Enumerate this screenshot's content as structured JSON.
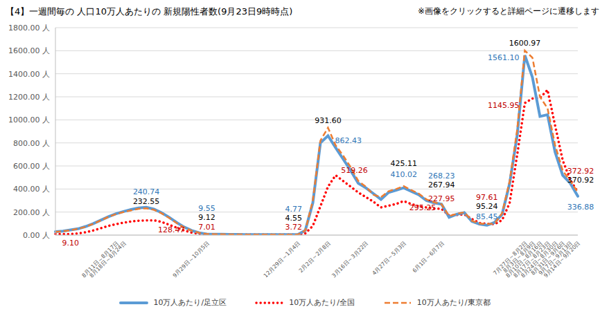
{
  "chart_data": {
    "type": "line",
    "title": "【4】一週間毎の 人口10万人あたりの 新規陽性者数(9月23日9時時点)",
    "subtitle": "※画像をクリックすると詳細ページに遷移します",
    "categories": [
      null,
      null,
      null,
      null,
      null,
      null,
      null,
      null,
      "8月11日～8月17日",
      "8月18日～8月24日",
      null,
      null,
      null,
      null,
      null,
      null,
      null,
      null,
      null,
      null,
      "9月29日～10月5日",
      null,
      null,
      null,
      null,
      null,
      null,
      null,
      null,
      null,
      null,
      null,
      "12月29日～1月4日",
      null,
      null,
      null,
      "2月2日～2月8日",
      null,
      null,
      null,
      null,
      "3月16日～3月22日",
      null,
      null,
      null,
      null,
      "4月27日～5月3日",
      null,
      null,
      null,
      null,
      "6月1日～6月7日",
      null,
      null,
      null,
      null,
      null,
      null,
      null,
      null,
      null,
      null,
      "7月27日～8月2日",
      "8月3日～8月9日",
      "8月10日～8月16日",
      "8月17日～8月23日",
      "8月24日～8月30日",
      "8月31日～9月6日",
      "9月7日～9月13日",
      "9月14日～9月20日"
    ],
    "series": [
      {
        "name": "10万人あたり/足立区",
        "color": "#5b9bd5",
        "line_style": "solid",
        "values": [
          30,
          35,
          45,
          55,
          75,
          100,
          130,
          160,
          185,
          205,
          222,
          235,
          240.74,
          225,
          195,
          155,
          110,
          70,
          40,
          20,
          9.55,
          8,
          7,
          6,
          6,
          5,
          5,
          5,
          5,
          5,
          5,
          5,
          4.77,
          40,
          280,
          800,
          862.43,
          760,
          660,
          560,
          450,
          410,
          360,
          310,
          370,
          390,
          410.02,
          380,
          350,
          300,
          280,
          268.23,
          155,
          180,
          195,
          120,
          95,
          85.45,
          110,
          180,
          450,
          870,
          1561.1,
          1370,
          1030,
          1045,
          720,
          520,
          450,
          336.88
        ]
      },
      {
        "name": "10万人あたり/全国",
        "color": "#ff0000",
        "line_style": "dotted",
        "values": [
          10,
          9,
          9.1,
          15,
          25,
          40,
          60,
          80,
          95,
          108,
          118,
          125,
          127,
          128.47,
          115,
          90,
          65,
          40,
          22,
          12,
          7.01,
          6,
          5,
          5,
          4,
          4,
          4,
          4,
          4,
          4,
          4,
          4,
          3.72,
          15,
          80,
          250,
          420,
          519.26,
          470,
          420,
          370,
          330,
          290,
          240,
          255,
          270,
          295.25,
          270,
          250,
          240,
          230,
          227.95,
          170,
          175,
          180,
          140,
          105,
          97.61,
          95,
          130,
          280,
          700,
          1145.95,
          1185,
          1190,
          1260,
          950,
          650,
          480,
          372.92
        ]
      },
      {
        "name": "10万人あたり/東京都",
        "color": "#ed7d31",
        "line_style": "dashed",
        "values": [
          28,
          33,
          42,
          55,
          72,
          98,
          128,
          158,
          182,
          200,
          215,
          228,
          232.55,
          220,
          190,
          150,
          105,
          65,
          38,
          20,
          9.12,
          8,
          7,
          6,
          6,
          5,
          5,
          5,
          5,
          5,
          5,
          5,
          4.55,
          40,
          300,
          820,
          931.6,
          780,
          690,
          590,
          470,
          420,
          350,
          330,
          380,
          400,
          425.11,
          390,
          360,
          310,
          285,
          267.94,
          165,
          185,
          198,
          125,
          100,
          95.24,
          100,
          190,
          470,
          920,
          1600.97,
          1540,
          1200,
          1100,
          780,
          560,
          470,
          370.92
        ]
      }
    ],
    "ylim": [
      0,
      1800
    ],
    "yticks": [
      {
        "value": 0,
        "label": "0.00 人"
      },
      {
        "value": 200,
        "label": "200.00 人"
      },
      {
        "value": 400,
        "label": "400.00 人"
      },
      {
        "value": 600,
        "label": "600.00 人"
      },
      {
        "value": 800,
        "label": "800.00 人"
      },
      {
        "value": 1000,
        "label": "1000.00 人"
      },
      {
        "value": 1200,
        "label": "1200.00 人"
      },
      {
        "value": 1400,
        "label": "1400.00 人"
      },
      {
        "value": 1600,
        "label": "1600.00 人"
      },
      {
        "value": 1800,
        "label": "1800.00 人"
      }
    ],
    "grid": true,
    "legend": "bottom",
    "annotations": [
      {
        "series": "10万人あたり/足立区",
        "value": 240.74,
        "label": "240.74",
        "color": "#2e75b6"
      },
      {
        "series": "10万人あたり/東京都",
        "value": 232.55,
        "label": "232.55",
        "color": "#000000"
      },
      {
        "series": "10万人あたり/全国",
        "value": 128.47,
        "label": "128.47",
        "color": "#c00000"
      },
      {
        "series": "10万人あたり/全国",
        "value": 9.1,
        "label": "9.10",
        "color": "#c00000"
      },
      {
        "series": "10万人あたり/足立区",
        "value": 9.55,
        "label": "9.55",
        "color": "#2e75b6"
      },
      {
        "series": "10万人あたり/東京都",
        "value": 9.12,
        "label": "9.12",
        "color": "#000000"
      },
      {
        "series": "10万人あたり/全国",
        "value": 7.01,
        "label": "7.01",
        "color": "#c00000"
      },
      {
        "series": "10万人あたり/足立区",
        "value": 4.77,
        "label": "4.77",
        "color": "#2e75b6"
      },
      {
        "series": "10万人あたり/東京都",
        "value": 4.55,
        "label": "4.55",
        "color": "#000000"
      },
      {
        "series": "10万人あたり/全国",
        "value": 3.72,
        "label": "3.72",
        "color": "#c00000"
      },
      {
        "series": "10万人あたり/東京都",
        "value": 931.6,
        "label": "931.60",
        "color": "#000000"
      },
      {
        "series": "10万人あたり/足立区",
        "value": 862.43,
        "label": "862.43",
        "color": "#2e75b6"
      },
      {
        "series": "10万人あたり/全国",
        "value": 519.26,
        "label": "519.26",
        "color": "#c00000"
      },
      {
        "series": "10万人あたり/東京都",
        "value": 425.11,
        "label": "425.11",
        "color": "#000000"
      },
      {
        "series": "10万人あたり/足立区",
        "value": 410.02,
        "label": "410.02",
        "color": "#2e75b6"
      },
      {
        "series": "10万人あたり/全国",
        "value": 295.25,
        "label": "295.25",
        "color": "#c00000"
      },
      {
        "series": "10万人あたり/足立区",
        "value": 268.23,
        "label": "268.23",
        "color": "#2e75b6"
      },
      {
        "series": "10万人あたり/東京都",
        "value": 267.94,
        "label": "267.94",
        "color": "#000000"
      },
      {
        "series": "10万人あたり/全国",
        "value": 227.95,
        "label": "227.95",
        "color": "#c00000"
      },
      {
        "series": "10万人あたり/全国",
        "value": 97.61,
        "label": "97.61",
        "color": "#c00000"
      },
      {
        "series": "10万人あたり/東京都",
        "value": 95.24,
        "label": "95.24",
        "color": "#000000"
      },
      {
        "series": "10万人あたり/足立区",
        "value": 85.45,
        "label": "85.45",
        "color": "#2e75b6"
      },
      {
        "series": "10万人あたり/東京都",
        "value": 1600.97,
        "label": "1600.97",
        "color": "#000000"
      },
      {
        "series": "10万人あたり/足立区",
        "value": 1561.1,
        "label": "1561.10",
        "color": "#2e75b6"
      },
      {
        "series": "10万人あたり/全国",
        "value": 1145.95,
        "label": "1145.95",
        "color": "#c00000"
      },
      {
        "series": "10万人あたり/全国",
        "value": 372.92,
        "label": "372.92",
        "color": "#c00000"
      },
      {
        "series": "10万人あたり/東京都",
        "value": 370.92,
        "label": "370.92",
        "color": "#000000"
      },
      {
        "series": "10万人あたり/足立区",
        "value": 336.88,
        "label": "336.88",
        "color": "#2e75b6"
      }
    ]
  }
}
